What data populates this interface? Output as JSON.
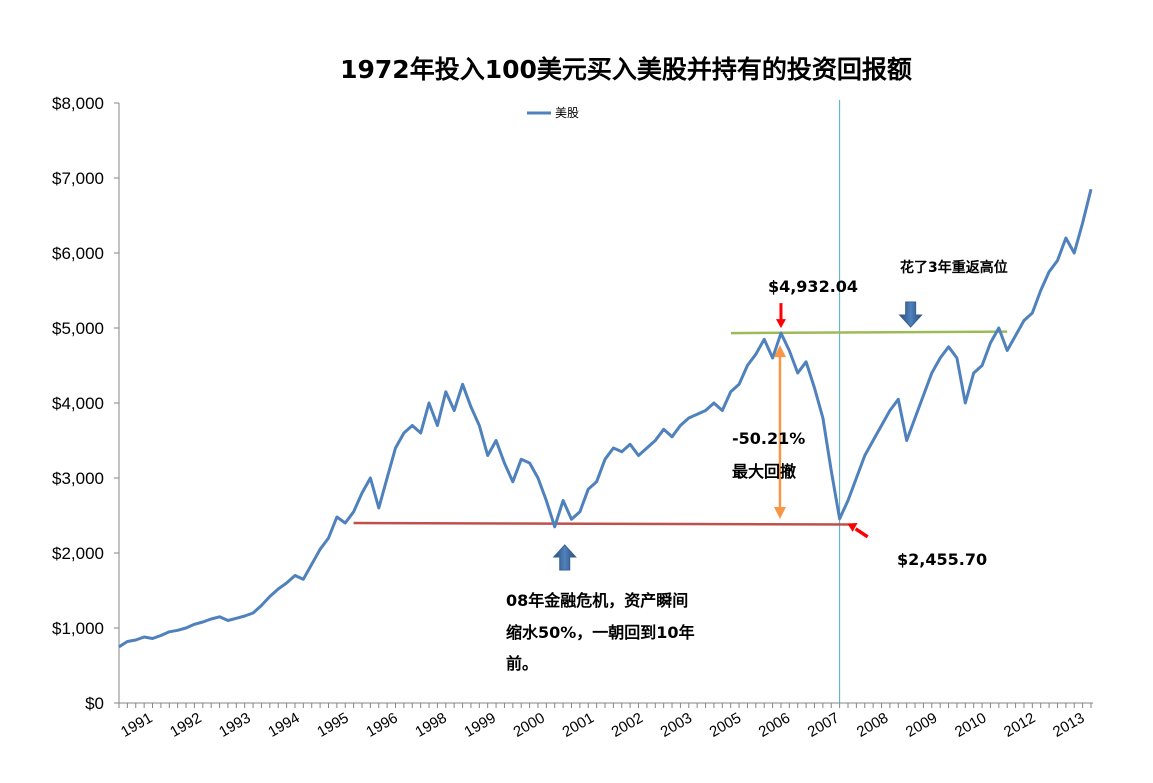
{
  "chart_data": {
    "type": "line",
    "title": "1972年投入100美元买入美股并持有的投资回报额",
    "xlabel": "",
    "ylabel": "",
    "ylim": [
      0,
      8000
    ],
    "y_ticks": [
      "$0",
      "$1,000",
      "$2,000",
      "$3,000",
      "$4,000",
      "$5,000",
      "$6,000",
      "$7,000",
      "$8,000"
    ],
    "x_ticks": [
      "1991",
      "1992",
      "1993",
      "1994",
      "1995",
      "1996",
      "1998",
      "1999",
      "2000",
      "2001",
      "2002",
      "2003",
      "2005",
      "2006",
      "2007",
      "2008",
      "2009",
      "2010",
      "2012",
      "2013"
    ],
    "grid": false,
    "legend_position": "top-center",
    "series": [
      {
        "name": "美股",
        "color": "#4f81bd",
        "points": [
          [
            0,
            750
          ],
          [
            1,
            820
          ],
          [
            2,
            840
          ],
          [
            3,
            880
          ],
          [
            4,
            860
          ],
          [
            5,
            900
          ],
          [
            6,
            950
          ],
          [
            7,
            970
          ],
          [
            8,
            1000
          ],
          [
            9,
            1050
          ],
          [
            10,
            1080
          ],
          [
            11,
            1120
          ],
          [
            12,
            1150
          ],
          [
            13,
            1100
          ],
          [
            14,
            1130
          ],
          [
            15,
            1160
          ],
          [
            16,
            1200
          ],
          [
            17,
            1300
          ],
          [
            18,
            1420
          ],
          [
            19,
            1520
          ],
          [
            20,
            1600
          ],
          [
            21,
            1700
          ],
          [
            22,
            1650
          ],
          [
            23,
            1850
          ],
          [
            24,
            2050
          ],
          [
            25,
            2200
          ],
          [
            26,
            2480
          ],
          [
            27,
            2400
          ],
          [
            28,
            2550
          ],
          [
            29,
            2800
          ],
          [
            30,
            3000
          ],
          [
            31,
            2600
          ],
          [
            32,
            3000
          ],
          [
            33,
            3400
          ],
          [
            34,
            3600
          ],
          [
            35,
            3700
          ],
          [
            36,
            3600
          ],
          [
            37,
            4000
          ],
          [
            38,
            3700
          ],
          [
            39,
            4150
          ],
          [
            40,
            3900
          ],
          [
            41,
            4250
          ],
          [
            42,
            3950
          ],
          [
            43,
            3700
          ],
          [
            44,
            3300
          ],
          [
            45,
            3500
          ],
          [
            46,
            3200
          ],
          [
            47,
            2950
          ],
          [
            48,
            3250
          ],
          [
            49,
            3200
          ],
          [
            50,
            3000
          ],
          [
            51,
            2700
          ],
          [
            52,
            2350
          ],
          [
            53,
            2700
          ],
          [
            54,
            2450
          ],
          [
            55,
            2550
          ],
          [
            56,
            2850
          ],
          [
            57,
            2950
          ],
          [
            58,
            3250
          ],
          [
            59,
            3400
          ],
          [
            60,
            3350
          ],
          [
            61,
            3450
          ],
          [
            62,
            3300
          ],
          [
            63,
            3400
          ],
          [
            64,
            3500
          ],
          [
            65,
            3650
          ],
          [
            66,
            3550
          ],
          [
            67,
            3700
          ],
          [
            68,
            3800
          ],
          [
            69,
            3850
          ],
          [
            70,
            3900
          ],
          [
            71,
            4000
          ],
          [
            72,
            3900
          ],
          [
            73,
            4150
          ],
          [
            74,
            4250
          ],
          [
            75,
            4500
          ],
          [
            76,
            4650
          ],
          [
            77,
            4850
          ],
          [
            78,
            4600
          ],
          [
            79,
            4932.04
          ],
          [
            80,
            4700
          ],
          [
            81,
            4400
          ],
          [
            82,
            4550
          ],
          [
            83,
            4200
          ],
          [
            84,
            3800
          ],
          [
            85,
            3100
          ],
          [
            86,
            2455.7
          ],
          [
            87,
            2700
          ],
          [
            88,
            3000
          ],
          [
            89,
            3300
          ],
          [
            90,
            3500
          ],
          [
            91,
            3700
          ],
          [
            92,
            3900
          ],
          [
            93,
            4050
          ],
          [
            94,
            3500
          ],
          [
            95,
            3800
          ],
          [
            96,
            4100
          ],
          [
            97,
            4400
          ],
          [
            98,
            4600
          ],
          [
            99,
            4750
          ],
          [
            100,
            4600
          ],
          [
            101,
            4000
          ],
          [
            102,
            4400
          ],
          [
            103,
            4500
          ],
          [
            104,
            4800
          ],
          [
            105,
            5000
          ],
          [
            106,
            4700
          ],
          [
            107,
            4900
          ],
          [
            108,
            5100
          ],
          [
            109,
            5200
          ],
          [
            110,
            5500
          ],
          [
            111,
            5750
          ],
          [
            112,
            5900
          ],
          [
            113,
            6200
          ],
          [
            114,
            6000
          ],
          [
            115,
            6400
          ],
          [
            116,
            6850
          ]
        ]
      }
    ],
    "annotations": {
      "peak_label": "$4,932.04",
      "trough_label": "$2,455.70",
      "drawdown_pct": "-50.21%",
      "drawdown_text": "最大回撤",
      "recovery_text": "花了3年重返高位",
      "crisis_line1": "08年金融危机，资产瞬间",
      "crisis_line2": "缩水50%，一朝回到10年",
      "crisis_line3": "前。",
      "peak_value": 4932.04,
      "trough_value": 2455.7,
      "support_level": 2400
    },
    "colors": {
      "peak_line": "#9bbb59",
      "trough_line": "#c0504d",
      "drawdown_arrow": "#f79646",
      "vertical_line": "#4bacc6",
      "red_arrow": "#ff0000",
      "blue_arrow": "#376092"
    }
  }
}
